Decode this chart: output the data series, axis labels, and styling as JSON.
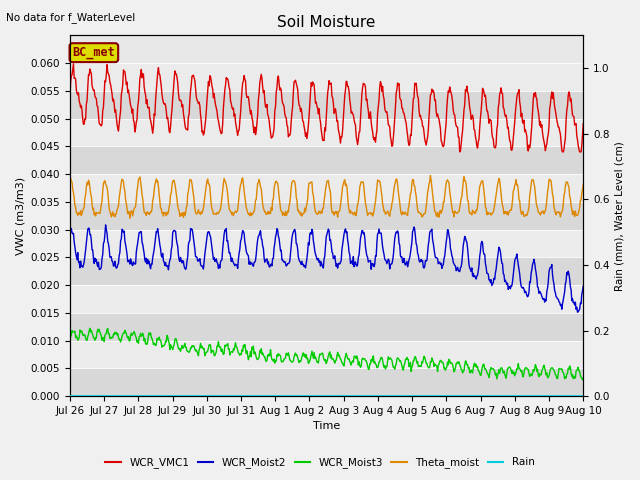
{
  "title": "Soil Moisture",
  "top_left_text": "No data for f_WaterLevel",
  "xlabel": "Time",
  "ylabel_left": "VWC (m3/m3)",
  "ylabel_right": "Rain (mm), Water Level (cm)",
  "ylim_left": [
    0.0,
    0.065
  ],
  "ylim_right": [
    0.0,
    1.1
  ],
  "background_color": "#f0f0f0",
  "plot_bg_color": "#e8e8e8",
  "band_color_dark": "#d8d8d8",
  "band_color_light": "#ebebeb",
  "legend_entries": [
    "WCR_VMC1",
    "WCR_Moist2",
    "WCR_Moist3",
    "Theta_moist",
    "Rain"
  ],
  "line_colors": [
    "#dd0000",
    "#0000cc",
    "#00cc00",
    "#dd8800",
    "#00ccdd"
  ],
  "annotation_box_text": "BC_met",
  "annotation_box_color": "#dddd00",
  "annotation_text_color": "#880000",
  "yticks": [
    0.0,
    0.005,
    0.01,
    0.015,
    0.02,
    0.025,
    0.03,
    0.035,
    0.04,
    0.045,
    0.05,
    0.055,
    0.06
  ],
  "right_yticks": [
    0.0,
    0.2,
    0.4,
    0.6,
    0.8,
    1.0
  ]
}
